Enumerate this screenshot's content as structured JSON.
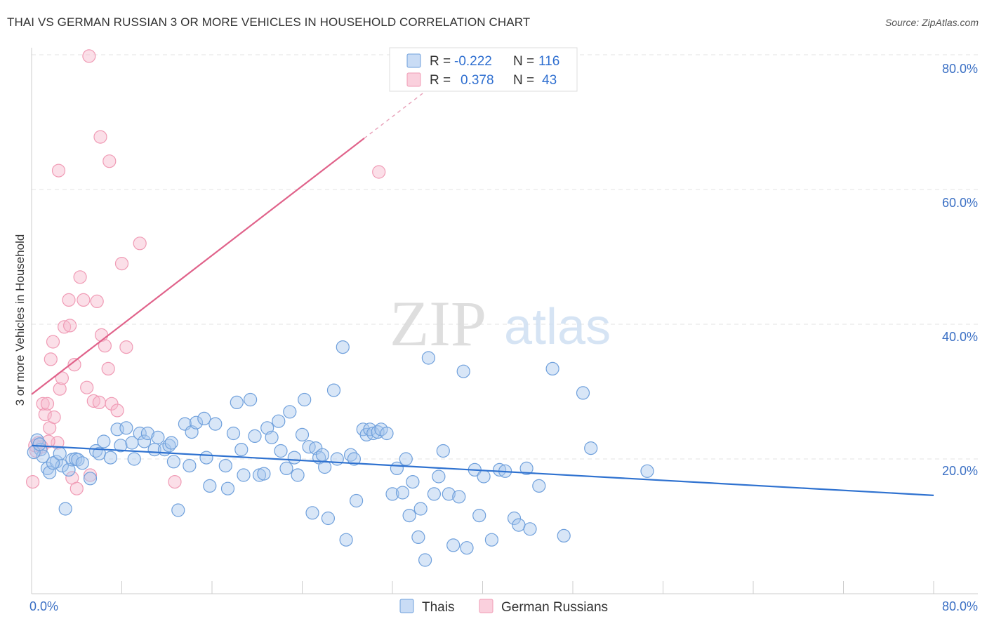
{
  "title": "THAI VS GERMAN RUSSIAN 3 OR MORE VEHICLES IN HOUSEHOLD CORRELATION CHART",
  "source": "Source: ZipAtlas.com",
  "watermark": {
    "zip": "ZIP",
    "atlas": "atlas"
  },
  "colors": {
    "blue": "#6fa0dc",
    "blue_line": "#2f72d0",
    "pink": "#f09bb5",
    "pink_line": "#e0628a",
    "axis_label": "#3a6fc4",
    "grid": "#e3e3e3"
  },
  "legend": {
    "rows": [
      {
        "r_label": "R =",
        "r_value": "-0.222",
        "n_label": "N =",
        "n_value": "116"
      },
      {
        "r_label": "R =",
        "r_value": "0.378",
        "n_label": "N =",
        "n_value": "43"
      }
    ]
  },
  "bottom_legend": {
    "thais": "Thais",
    "german_russians": "German Russians"
  },
  "chart_data": {
    "type": "scatter",
    "xlabel": "",
    "ylabel": "3 or more Vehicles in Household",
    "xlim": [
      0,
      80
    ],
    "ylim": [
      0,
      80
    ],
    "x_ticks": [
      "0.0%",
      "80.0%"
    ],
    "y_ticks": [
      "20.0%",
      "40.0%",
      "60.0%",
      "80.0%"
    ],
    "series": [
      {
        "name": "Thais",
        "r": -0.222,
        "n": 116,
        "trend": {
          "x": [
            0,
            80
          ],
          "y": [
            22.0,
            14.6
          ]
        },
        "points": [
          [
            0.5,
            22.8
          ],
          [
            0.8,
            21.4
          ],
          [
            1.0,
            20.4
          ],
          [
            1.4,
            18.6
          ],
          [
            1.6,
            18.0
          ],
          [
            2.2,
            19.6
          ],
          [
            2.7,
            19.0
          ],
          [
            3.0,
            12.6
          ],
          [
            3.3,
            18.4
          ],
          [
            3.6,
            19.9
          ],
          [
            3.9,
            20.0
          ],
          [
            4.1,
            19.9
          ],
          [
            4.5,
            19.4
          ],
          [
            5.2,
            17.1
          ],
          [
            5.7,
            21.2
          ],
          [
            6.0,
            20.8
          ],
          [
            6.4,
            22.6
          ],
          [
            7.0,
            20.2
          ],
          [
            7.6,
            24.4
          ],
          [
            7.9,
            22.0
          ],
          [
            8.4,
            24.6
          ],
          [
            8.9,
            22.4
          ],
          [
            9.1,
            20.0
          ],
          [
            9.6,
            23.8
          ],
          [
            10.0,
            22.6
          ],
          [
            10.3,
            23.8
          ],
          [
            10.9,
            21.4
          ],
          [
            11.2,
            23.2
          ],
          [
            11.8,
            21.4
          ],
          [
            12.2,
            22.0
          ],
          [
            12.4,
            22.4
          ],
          [
            12.6,
            19.6
          ],
          [
            13.0,
            12.4
          ],
          [
            13.6,
            25.2
          ],
          [
            14.0,
            19.0
          ],
          [
            14.2,
            24.0
          ],
          [
            14.6,
            25.4
          ],
          [
            15.3,
            26.0
          ],
          [
            15.5,
            20.2
          ],
          [
            15.8,
            16.0
          ],
          [
            16.3,
            25.2
          ],
          [
            17.2,
            19.0
          ],
          [
            17.4,
            15.6
          ],
          [
            17.9,
            23.8
          ],
          [
            18.2,
            28.4
          ],
          [
            18.6,
            21.4
          ],
          [
            18.8,
            17.6
          ],
          [
            19.4,
            28.8
          ],
          [
            19.8,
            23.4
          ],
          [
            20.2,
            17.6
          ],
          [
            20.6,
            17.8
          ],
          [
            20.9,
            24.6
          ],
          [
            21.3,
            23.2
          ],
          [
            21.9,
            25.6
          ],
          [
            22.1,
            21.2
          ],
          [
            22.6,
            18.6
          ],
          [
            22.9,
            27.0
          ],
          [
            23.3,
            20.2
          ],
          [
            23.6,
            17.6
          ],
          [
            24.0,
            23.6
          ],
          [
            24.2,
            28.8
          ],
          [
            24.6,
            21.8
          ],
          [
            24.9,
            12.0
          ],
          [
            25.2,
            21.6
          ],
          [
            25.5,
            20.2
          ],
          [
            25.8,
            20.6
          ],
          [
            26.3,
            11.2
          ],
          [
            26.8,
            30.2
          ],
          [
            27.1,
            20.0
          ],
          [
            27.6,
            36.6
          ],
          [
            27.9,
            8.0
          ],
          [
            28.3,
            20.6
          ],
          [
            28.6,
            20.0
          ],
          [
            28.8,
            13.8
          ],
          [
            29.4,
            24.4
          ],
          [
            29.7,
            23.6
          ],
          [
            30.0,
            24.4
          ],
          [
            30.3,
            23.8
          ],
          [
            30.7,
            24.0
          ],
          [
            31.0,
            24.4
          ],
          [
            31.5,
            23.8
          ],
          [
            32.0,
            14.8
          ],
          [
            32.4,
            18.6
          ],
          [
            32.9,
            15.0
          ],
          [
            33.5,
            11.6
          ],
          [
            33.8,
            16.6
          ],
          [
            34.3,
            8.4
          ],
          [
            34.5,
            12.6
          ],
          [
            34.9,
            5.0
          ],
          [
            35.2,
            35.0
          ],
          [
            35.7,
            14.8
          ],
          [
            36.1,
            17.4
          ],
          [
            37.0,
            14.8
          ],
          [
            37.4,
            7.2
          ],
          [
            37.9,
            14.4
          ],
          [
            38.3,
            33.0
          ],
          [
            38.6,
            6.8
          ],
          [
            39.3,
            18.4
          ],
          [
            39.7,
            11.6
          ],
          [
            40.1,
            17.4
          ],
          [
            40.8,
            8.0
          ],
          [
            41.5,
            18.4
          ],
          [
            42.0,
            18.2
          ],
          [
            42.8,
            11.2
          ],
          [
            43.2,
            10.2
          ],
          [
            43.9,
            18.6
          ],
          [
            44.2,
            9.6
          ],
          [
            46.2,
            33.4
          ],
          [
            47.2,
            8.6
          ],
          [
            48.9,
            29.8
          ],
          [
            49.6,
            21.6
          ],
          [
            54.6,
            18.2
          ],
          [
            0.2,
            21.0
          ],
          [
            0.7,
            22.2
          ],
          [
            1.9,
            19.4
          ],
          [
            2.5,
            20.8
          ],
          [
            33.2,
            20.0
          ],
          [
            36.5,
            21.2
          ],
          [
            26.0,
            18.8
          ],
          [
            45.0,
            16.0
          ]
        ]
      },
      {
        "name": "German Russians",
        "r": 0.378,
        "n": 43,
        "trend": {
          "x": [
            0,
            29.5
          ],
          "y": [
            29.6,
            67.6
          ]
        },
        "trend_dashed": {
          "x": [
            29.5,
            36.5
          ],
          "y": [
            67.6,
            76.6
          ]
        },
        "points": [
          [
            0.1,
            16.6
          ],
          [
            0.4,
            21.2
          ],
          [
            0.6,
            22.4
          ],
          [
            0.9,
            21.8
          ],
          [
            1.0,
            28.2
          ],
          [
            1.2,
            26.6
          ],
          [
            1.4,
            28.2
          ],
          [
            1.6,
            24.6
          ],
          [
            1.7,
            34.8
          ],
          [
            1.9,
            37.4
          ],
          [
            2.0,
            26.2
          ],
          [
            2.3,
            22.4
          ],
          [
            2.5,
            30.4
          ],
          [
            2.7,
            32.0
          ],
          [
            2.9,
            39.6
          ],
          [
            3.3,
            43.6
          ],
          [
            3.4,
            39.8
          ],
          [
            3.6,
            17.2
          ],
          [
            3.8,
            34.0
          ],
          [
            4.0,
            15.6
          ],
          [
            4.3,
            47.0
          ],
          [
            4.6,
            43.6
          ],
          [
            4.9,
            30.6
          ],
          [
            5.2,
            17.6
          ],
          [
            5.5,
            28.6
          ],
          [
            5.8,
            43.4
          ],
          [
            6.0,
            28.4
          ],
          [
            6.2,
            38.4
          ],
          [
            6.5,
            36.8
          ],
          [
            6.8,
            33.4
          ],
          [
            7.1,
            28.2
          ],
          [
            7.6,
            27.2
          ],
          [
            8.0,
            49.0
          ],
          [
            8.4,
            36.6
          ],
          [
            9.6,
            52.0
          ],
          [
            12.7,
            16.6
          ],
          [
            2.4,
            62.8
          ],
          [
            5.1,
            79.8
          ],
          [
            6.1,
            67.8
          ],
          [
            6.9,
            64.2
          ],
          [
            30.8,
            62.6
          ],
          [
            0.3,
            22.0
          ],
          [
            1.5,
            22.6
          ]
        ]
      }
    ]
  }
}
